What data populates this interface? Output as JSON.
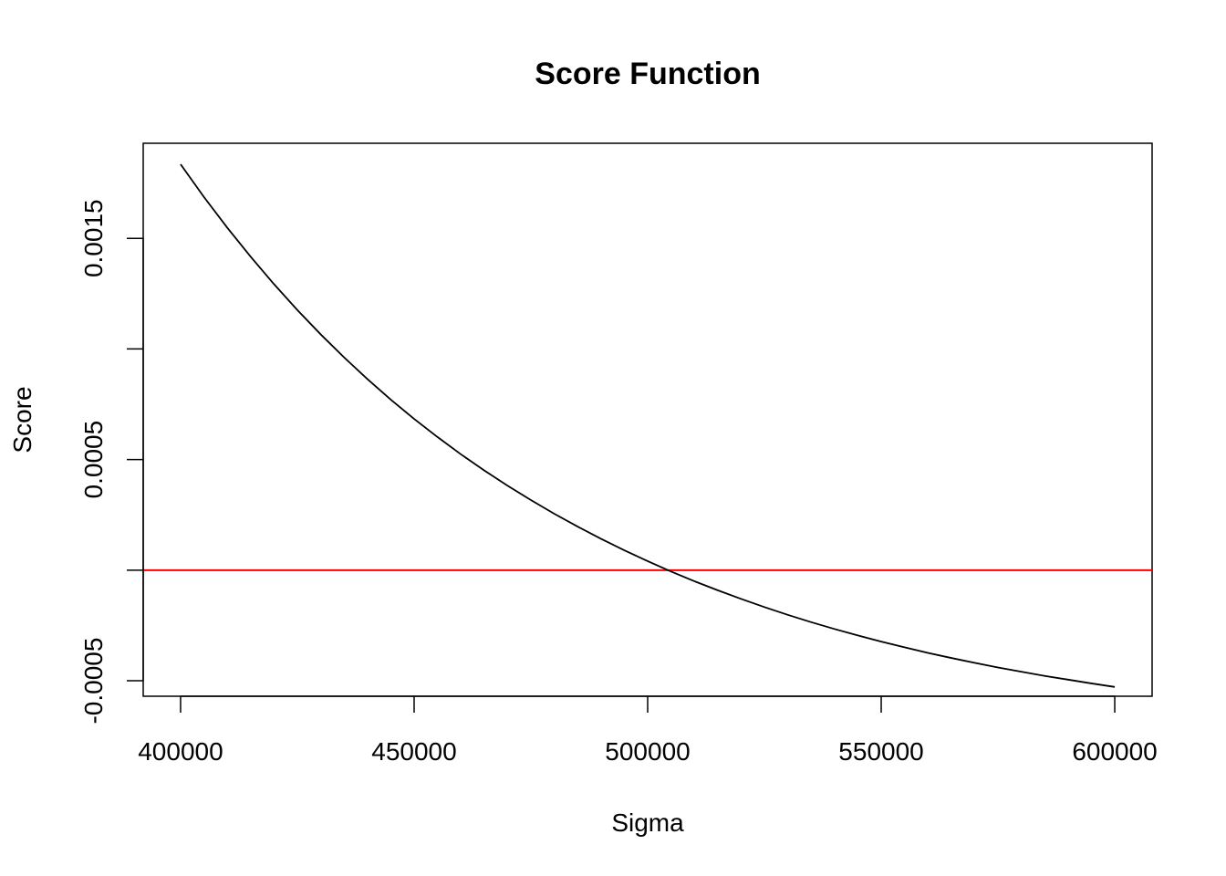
{
  "chart_data": {
    "type": "line",
    "title": "Score Function",
    "xlabel": "Sigma",
    "ylabel": "Score",
    "xlim": [
      392000,
      608000
    ],
    "ylim": [
      -0.00057,
      0.00193
    ],
    "x_ticks": [
      {
        "value": 400000,
        "label": "400000"
      },
      {
        "value": 450000,
        "label": "450000"
      },
      {
        "value": 500000,
        "label": "500000"
      },
      {
        "value": 550000,
        "label": "550000"
      },
      {
        "value": 600000,
        "label": "600000"
      }
    ],
    "y_ticks": [
      {
        "value": -0.0005,
        "label": "-0.0005"
      },
      {
        "value": 0.0,
        "label": ""
      },
      {
        "value": 0.0005,
        "label": "0.0005"
      },
      {
        "value": 0.001,
        "label": ""
      },
      {
        "value": 0.0015,
        "label": "0.0015"
      }
    ],
    "series": [
      {
        "color": "#000000",
        "x": [
          400000,
          405000,
          410000,
          415000,
          420000,
          425000,
          430000,
          435000,
          440000,
          445000,
          450000,
          455000,
          460000,
          465000,
          470000,
          475000,
          480000,
          485000,
          490000,
          495000,
          500000,
          505000,
          510000,
          515000,
          520000,
          525000,
          530000,
          535000,
          540000,
          545000,
          550000,
          555000,
          560000,
          565000,
          570000,
          575000,
          580000,
          585000,
          590000,
          595000,
          600000
        ],
        "y": [
          0.001835,
          0.001687,
          0.001548,
          0.001417,
          0.001293,
          0.001176,
          0.001066,
          0.000962,
          0.000864,
          0.000771,
          0.000684,
          0.000602,
          0.000524,
          0.000451,
          0.000382,
          0.000317,
          0.000255,
          0.000197,
          0.000142,
          9e-05,
          4.1e-05,
          -6e-06,
          -5e-05,
          -9.1e-05,
          -0.00013,
          -0.000167,
          -0.000202,
          -0.000235,
          -0.000266,
          -0.000295,
          -0.000323,
          -0.000349,
          -0.000374,
          -0.000397,
          -0.000419,
          -0.00044,
          -0.000459,
          -0.000478,
          -0.000495,
          -0.000512,
          -0.000528
        ]
      }
    ],
    "hlines": [
      {
        "y": 0.0,
        "color": "#ff0000"
      }
    ],
    "grid": false,
    "legend": false
  }
}
